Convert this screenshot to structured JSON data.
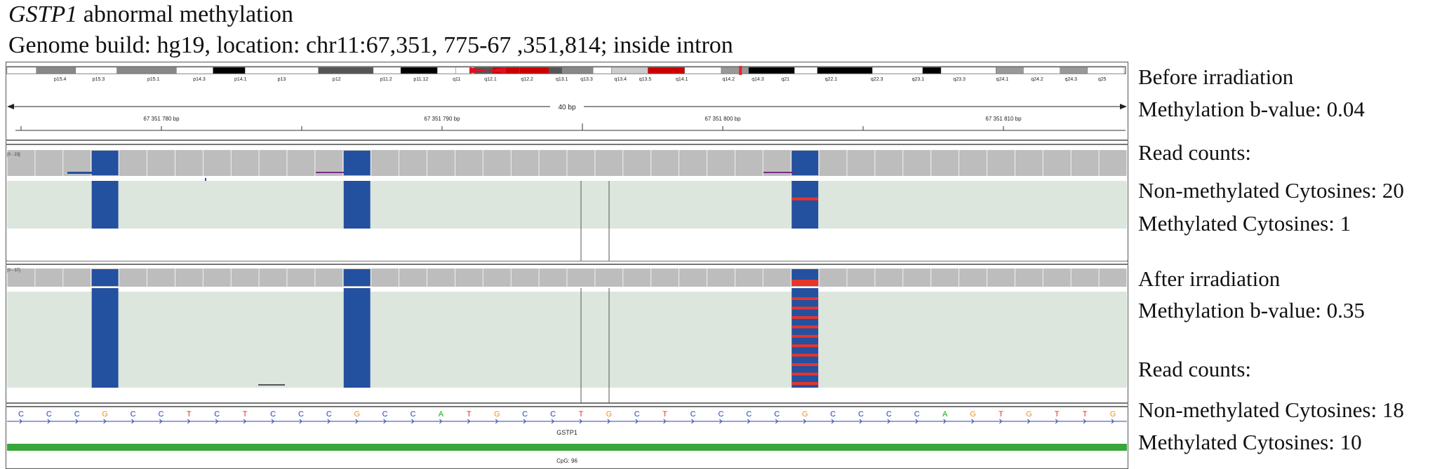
{
  "header": {
    "gene": "GSTP1",
    "title_rest": "abnormal methylation",
    "subtitle": "Genome build: hg19, location: chr11:67,351, 775-67 ,351,814; inside intron"
  },
  "ideogram": {
    "bands": [
      "p15.4",
      "p15.3",
      "p15.1",
      "p14.3",
      "p14.1",
      "p13",
      "p12",
      "p11.2",
      "p11.12",
      "q11",
      "q12.1",
      "q12.2",
      "q13.1",
      "q13.3",
      "q13.4",
      "q13.5",
      "q14.1",
      "q14.2",
      "q14.3",
      "q21",
      "q22.1",
      "q22.3",
      "q23.1",
      "q23.3",
      "q24.1",
      "q24.2",
      "q24.3",
      "q25"
    ]
  },
  "ruler": {
    "span_label": "40 bp",
    "ticks": [
      "67 351 780 bp",
      "67 351 790 bp",
      "67 351 800 bp",
      "67 351 810 bp"
    ]
  },
  "tracks": {
    "before": {
      "range_label": "[0 - 23]",
      "methylated_reads_at_third_cpg": 1
    },
    "after": {
      "range_label": "[0 - 37]",
      "methylated_reads_at_third_cpg": 10
    }
  },
  "sequence": [
    "C",
    "C",
    "C",
    "G",
    "C",
    "C",
    "T",
    "C",
    "T",
    "C",
    "C",
    "C",
    "G",
    "C",
    "C",
    "A",
    "T",
    "G",
    "C",
    "C",
    "T",
    "G",
    "C",
    "T",
    "C",
    "C",
    "C",
    "C",
    "G",
    "C",
    "C",
    "C",
    "C",
    "A",
    "G",
    "T",
    "G",
    "T",
    "T",
    "G"
  ],
  "gene_track": {
    "gene_label": "GSTP1",
    "cpg_label": "CpG: 96"
  },
  "colors": {
    "A": "#1aa51a",
    "C": "#1f3fb8",
    "G": "#e8941a",
    "T": "#e03030",
    "non_methylated": "#2450a0",
    "methylated": "#e8352a",
    "gene": "#3aa53a",
    "coverage": "#bdbdbd",
    "reads_bg": "#dde6dd"
  },
  "before": {
    "heading": "Before irradiation",
    "beta": "Methylation b-value: 0.04",
    "counts_label": "Read counts:",
    "non_methylated": "Non-methylated Cytosines: 20",
    "methylated": "Methylated Cytosines: 1"
  },
  "after": {
    "heading": "After irradiation",
    "beta": "Methylation b-value: 0.35",
    "counts_label": "Read counts:",
    "non_methylated": "Non-methylated Cytosines: 18",
    "methylated": "Methylated Cytosines: 10"
  }
}
